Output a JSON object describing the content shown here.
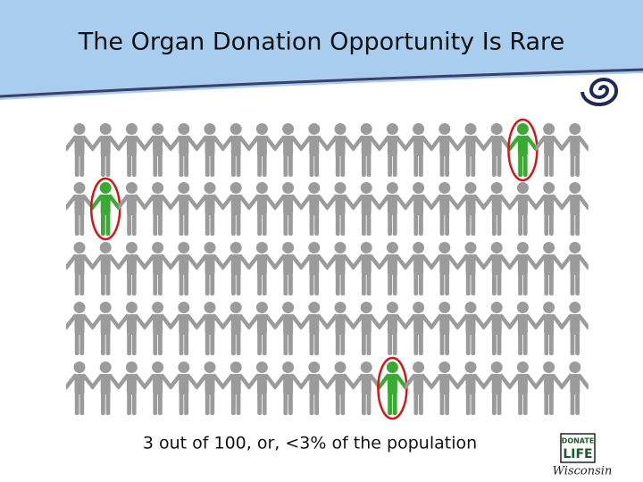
{
  "header": {
    "title": "The Organ Donation Opportunity Is Rare"
  },
  "pictogram": {
    "rows": 5,
    "columns": 20,
    "highlighted": [
      17,
      21,
      92
    ]
  },
  "caption": "3 out of 100, or, <3% of the population",
  "logo": {
    "top": "DONATE",
    "middle": "LIFE",
    "bottom": "Wisconsin"
  }
}
